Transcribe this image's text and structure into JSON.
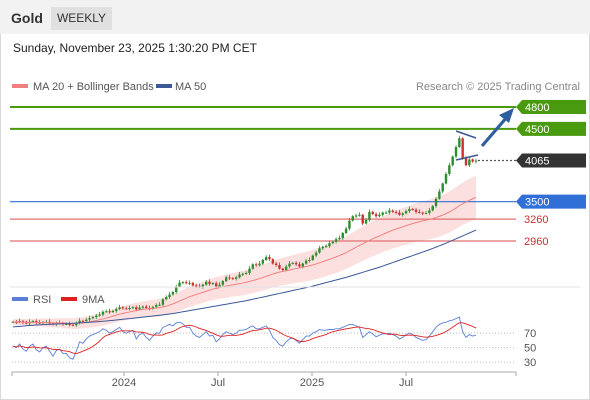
{
  "header": {
    "asset": "Gold",
    "timeframe": "WEEKLY"
  },
  "datetime": "Sunday, November 23, 2025 1:30:20 PM CET",
  "legend": [
    {
      "label": "MA 20 + Bollinger Bands",
      "color": "#f08080"
    },
    {
      "label": "MA 50",
      "color": "#3b5998"
    }
  ],
  "copyright": "Research © 2025 Trading Central",
  "rsi_legend": [
    {
      "label": "RSI",
      "color": "#5a7fd6"
    },
    {
      "label": "9MA",
      "color": "#e02020"
    }
  ],
  "colors": {
    "up": "#2e8b2e",
    "down": "#c83232",
    "resistance": "#4a9a10",
    "support": "#2f6fd6",
    "minor": "#e07070",
    "current": "#333333"
  },
  "chart_data": {
    "type": "candlestick",
    "price_range": [
      2800,
      5000
    ],
    "x_ticks": [
      "2024",
      "Jul",
      "2025",
      "Jul"
    ],
    "levels": [
      {
        "value": 4800,
        "label": "4800",
        "kind": "resistance"
      },
      {
        "value": 4500,
        "label": "4500",
        "kind": "resistance"
      },
      {
        "value": 4065,
        "label": "4065",
        "kind": "current"
      },
      {
        "value": 3500,
        "label": "3500",
        "kind": "support"
      },
      {
        "value": 3260,
        "label": "3260",
        "kind": "minor"
      },
      {
        "value": 2960,
        "label": "2960",
        "kind": "minor"
      }
    ],
    "closes": [
      1850,
      1845,
      1860,
      1840,
      1830,
      1850,
      1860,
      1840,
      1835,
      1845,
      1850,
      1830,
      1815,
      1830,
      1835,
      1820,
      1820,
      1810,
      1805,
      1830,
      1865,
      1860,
      1880,
      1900,
      1915,
      1935,
      1950,
      1990,
      1995,
      1985,
      2000,
      2025,
      2050,
      2035,
      2030,
      2040,
      2050,
      2020,
      2045,
      2060,
      2040,
      2030,
      2055,
      2080,
      2085,
      2160,
      2190,
      2225,
      2260,
      2335,
      2390,
      2395,
      2380,
      2385,
      2350,
      2340,
      2330,
      2360,
      2400,
      2370,
      2380,
      2330,
      2360,
      2410,
      2460,
      2450,
      2440,
      2460,
      2500,
      2510,
      2520,
      2580,
      2640,
      2625,
      2650,
      2700,
      2740,
      2710,
      2650,
      2630,
      2580,
      2560,
      2610,
      2650,
      2660,
      2640,
      2610,
      2650,
      2690,
      2700,
      2760,
      2800,
      2860,
      2880,
      2890,
      2930,
      2950,
      2985,
      3000,
      3070,
      3130,
      3240,
      3300,
      3310,
      3320,
      3200,
      3250,
      3360,
      3330,
      3300,
      3320,
      3350,
      3350,
      3380,
      3360,
      3350,
      3320,
      3340,
      3370,
      3400,
      3390,
      3360,
      3350,
      3340,
      3345,
      3380,
      3440,
      3540,
      3640,
      3750,
      3880,
      4000,
      4120,
      4250,
      4370,
      4100,
      4000,
      4080,
      4050,
      4065
    ],
    "ma20": [
      1850,
      1848,
      1849,
      1846,
      1843,
      1843,
      1845,
      1843,
      1842,
      1840,
      1840,
      1838,
      1835,
      1834,
      1834,
      1832,
      1830,
      1828,
      1826,
      1828,
      1833,
      1838,
      1845,
      1853,
      1860,
      1868,
      1878,
      1890,
      1902,
      1914,
      1928,
      1942,
      1955,
      1966,
      1976,
      1986,
      1995,
      2003,
      2012,
      2021,
      2025,
      2030,
      2035,
      2040,
      2045,
      2055,
      2065,
      2080,
      2095,
      2115,
      2135,
      2155,
      2175,
      2195,
      2210,
      2225,
      2240,
      2255,
      2270,
      2285,
      2300,
      2310,
      2320,
      2330,
      2340,
      2350,
      2358,
      2366,
      2374,
      2384,
      2394,
      2405,
      2418,
      2430,
      2444,
      2458,
      2474,
      2490,
      2506,
      2520,
      2532,
      2542,
      2552,
      2562,
      2572,
      2582,
      2590,
      2600,
      2610,
      2620,
      2632,
      2645,
      2660,
      2675,
      2692,
      2708,
      2724,
      2742,
      2760,
      2780,
      2800,
      2825,
      2850,
      2875,
      2900,
      2922,
      2945,
      2968,
      2990,
      3010,
      3030,
      3050,
      3070,
      3090,
      3108,
      3125,
      3140,
      3155,
      3170,
      3185,
      3200,
      3212,
      3224,
      3236,
      3246,
      3256,
      3268,
      3282,
      3298,
      3316,
      3336,
      3358,
      3384,
      3412,
      3444,
      3470,
      3494,
      3518,
      3540,
      3560
    ],
    "ma50": [
      1780,
      1784,
      1788,
      1792,
      1796,
      1800,
      1803,
      1806,
      1809,
      1812,
      1814,
      1816,
      1818,
      1820,
      1822,
      1824,
      1826,
      1828,
      1830,
      1832,
      1835,
      1838,
      1841,
      1844,
      1847,
      1850,
      1854,
      1858,
      1862,
      1866,
      1870,
      1875,
      1880,
      1885,
      1890,
      1895,
      1900,
      1905,
      1910,
      1915,
      1920,
      1925,
      1930,
      1935,
      1940,
      1946,
      1952,
      1958,
      1964,
      1972,
      1980,
      1988,
      1996,
      2004,
      2012,
      2020,
      2028,
      2036,
      2044,
      2052,
      2060,
      2068,
      2076,
      2084,
      2092,
      2100,
      2108,
      2116,
      2124,
      2132,
      2140,
      2150,
      2160,
      2170,
      2180,
      2190,
      2200,
      2210,
      2220,
      2230,
      2240,
      2250,
      2260,
      2270,
      2280,
      2290,
      2300,
      2310,
      2320,
      2330,
      2340,
      2352,
      2364,
      2376,
      2388,
      2400,
      2412,
      2424,
      2436,
      2448,
      2460,
      2474,
      2488,
      2502,
      2516,
      2530,
      2544,
      2558,
      2572,
      2586,
      2600,
      2616,
      2632,
      2648,
      2664,
      2680,
      2696,
      2712,
      2728,
      2744,
      2760,
      2776,
      2792,
      2808,
      2824,
      2840,
      2858,
      2876,
      2894,
      2912,
      2930,
      2950,
      2970,
      2990,
      3010,
      3030,
      3050,
      3070,
      3090,
      3110
    ],
    "rsi": [
      52,
      50,
      55,
      48,
      45,
      52,
      55,
      47,
      44,
      50,
      52,
      45,
      38,
      46,
      48,
      42,
      42,
      36,
      34,
      45,
      58,
      56,
      62,
      66,
      68,
      70,
      72,
      76,
      74,
      70,
      72,
      75,
      78,
      72,
      70,
      72,
      74,
      62,
      68,
      70,
      64,
      60,
      66,
      70,
      70,
      78,
      80,
      82,
      80,
      84,
      85,
      83,
      78,
      78,
      70,
      66,
      64,
      68,
      72,
      66,
      67,
      58,
      62,
      68,
      72,
      70,
      68,
      70,
      74,
      74,
      75,
      78,
      80,
      76,
      76,
      78,
      80,
      74,
      64,
      60,
      54,
      52,
      58,
      62,
      63,
      60,
      56,
      61,
      66,
      66,
      70,
      72,
      75,
      74,
      74,
      75,
      75,
      76,
      76,
      78,
      80,
      82,
      82,
      80,
      78,
      64,
      68,
      72,
      69,
      65,
      67,
      69,
      69,
      70,
      68,
      66,
      62,
      64,
      68,
      70,
      68,
      64,
      62,
      60,
      61,
      66,
      72,
      78,
      82,
      84,
      85,
      87,
      88,
      90,
      92,
      72,
      64,
      68,
      66,
      67
    ],
    "rsi_levels": [
      70,
      50,
      30
    ],
    "rsi_range": [
      15,
      95
    ]
  }
}
